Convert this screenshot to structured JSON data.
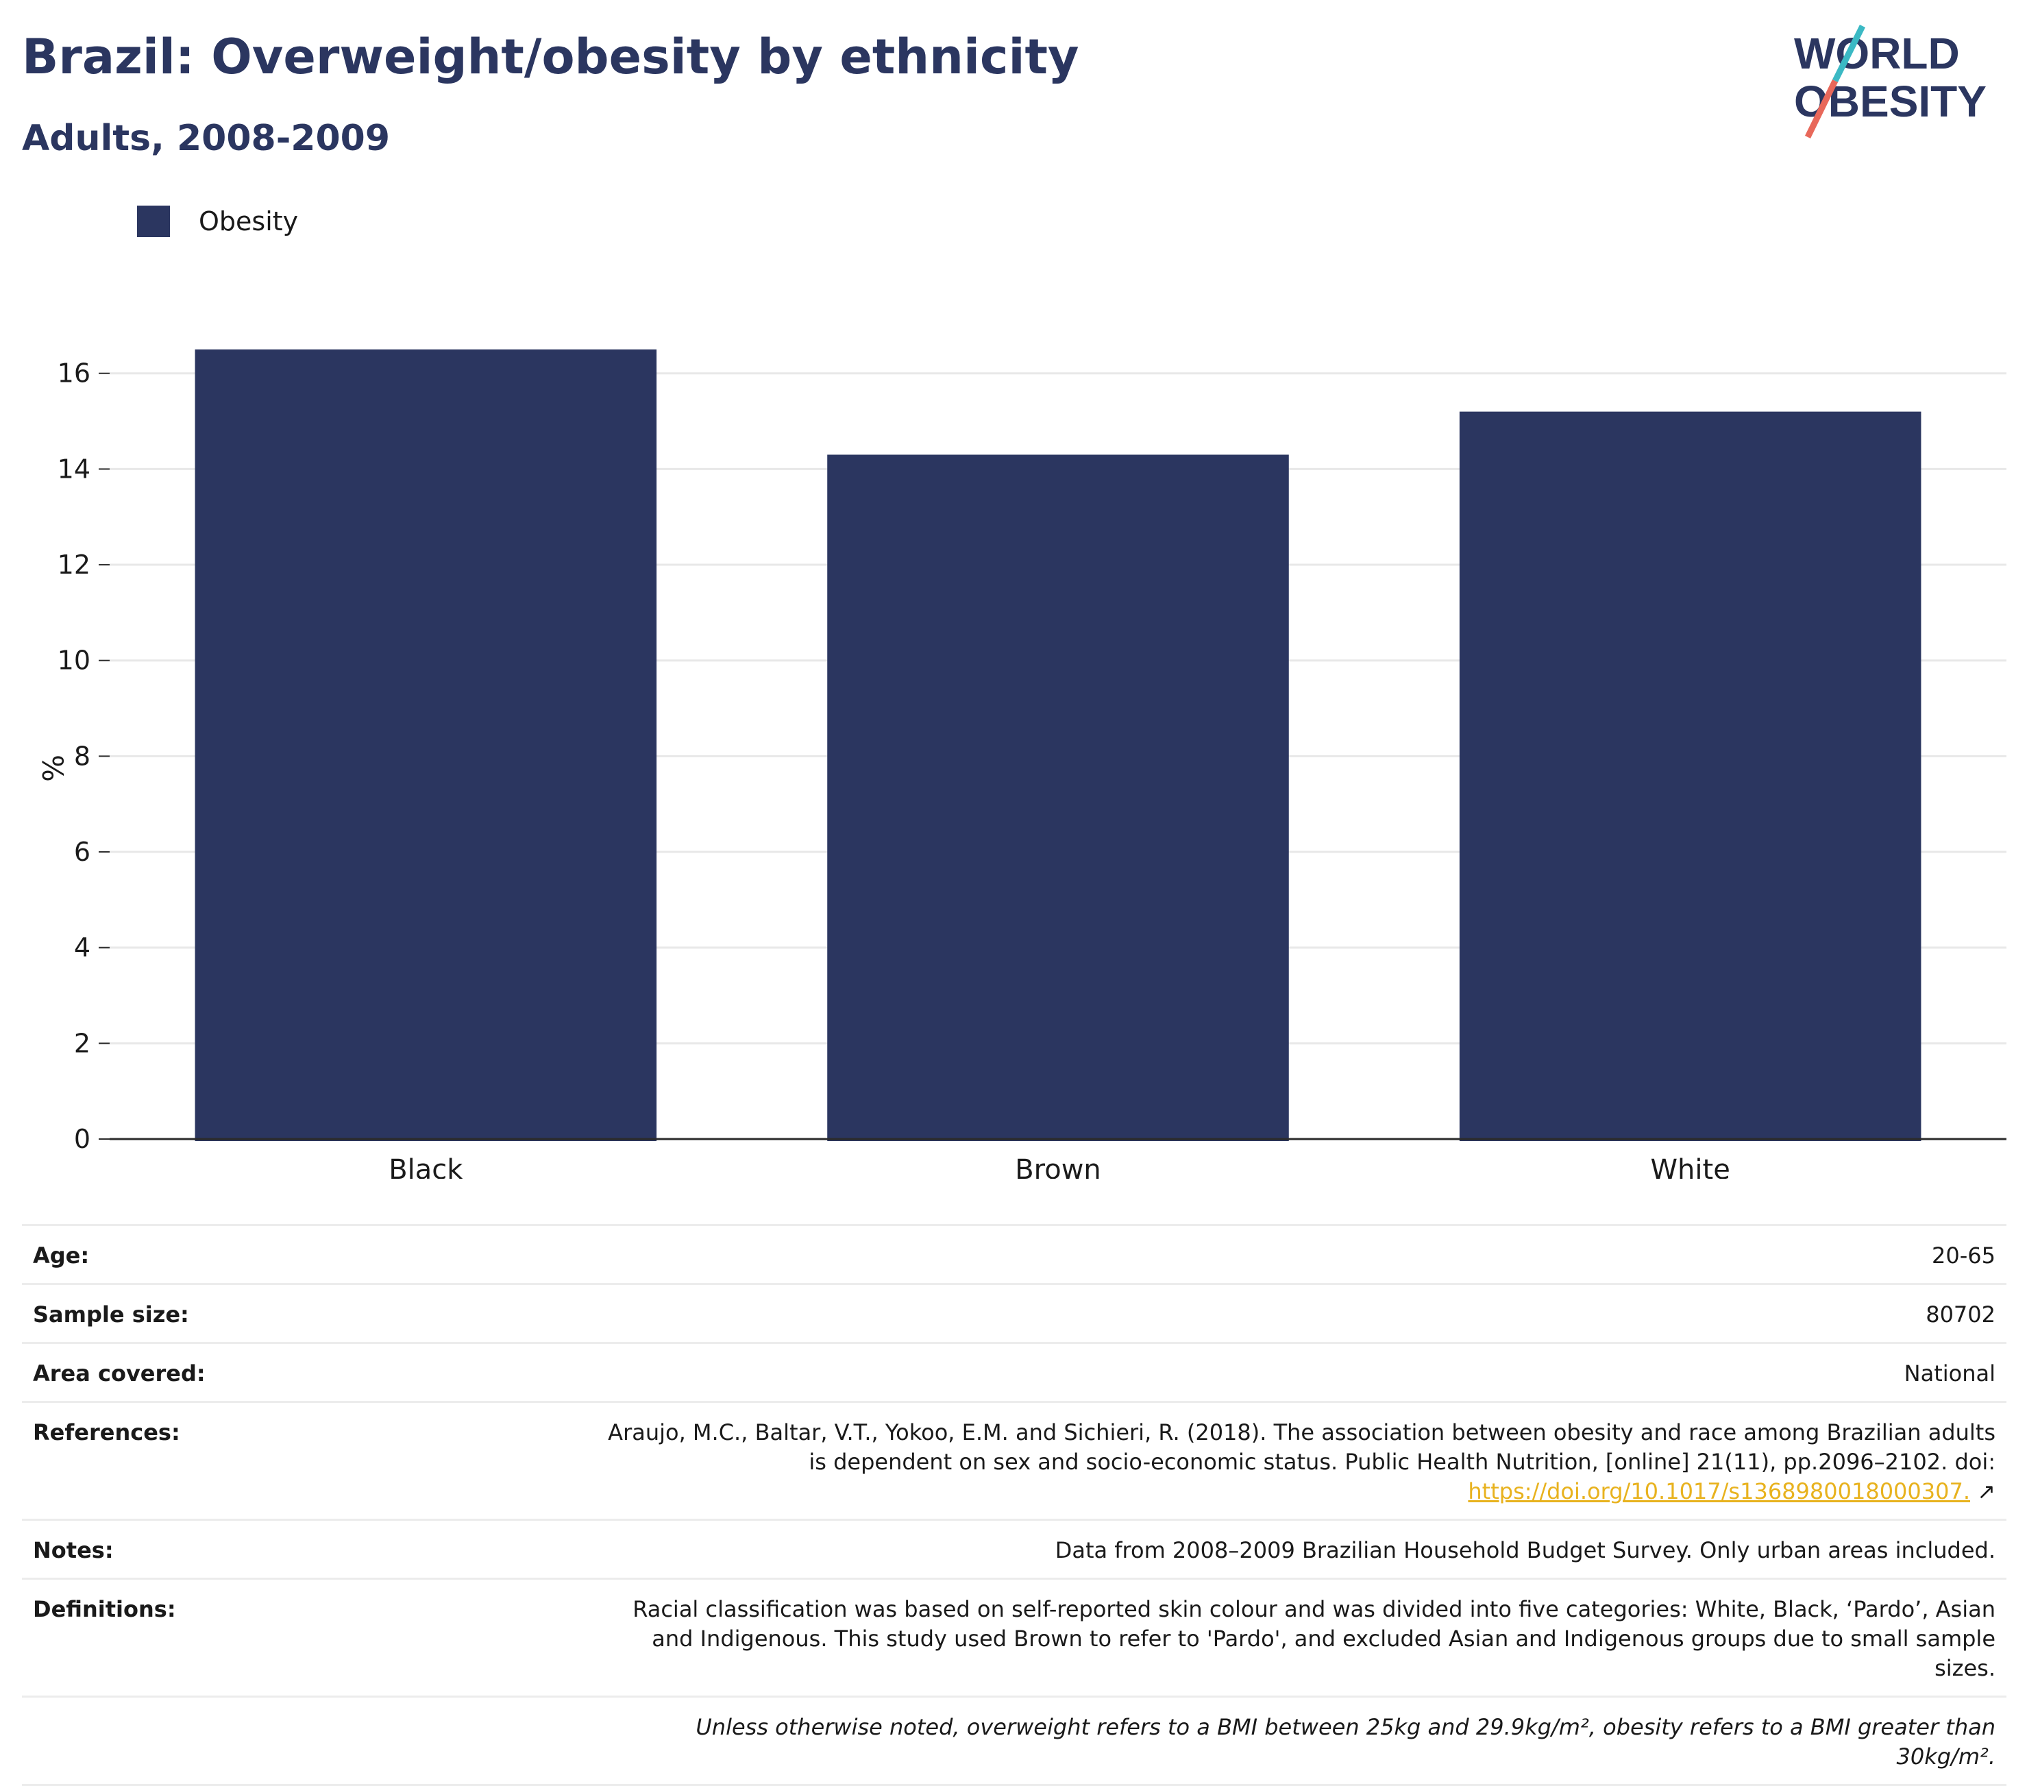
{
  "header": {
    "title": "Brazil: Overweight/obesity by ethnicity",
    "subtitle": "Adults, 2008-2009"
  },
  "logo": {
    "line1": "WORLD",
    "line2": "OBESITY",
    "colors": {
      "text": "#2b3660",
      "slash_top": "#3bb9c4",
      "slash_bottom": "#e8685a"
    }
  },
  "legend": {
    "label": "Obesity",
    "color": "#2b3660"
  },
  "chart_data": {
    "type": "bar",
    "categories": [
      "Black",
      "Brown",
      "White"
    ],
    "series": [
      {
        "name": "Obesity",
        "values": [
          16.5,
          14.3,
          15.2
        ],
        "color": "#2b3660"
      }
    ],
    "title": "Brazil: Overweight/obesity by ethnicity",
    "subtitle": "Adults, 2008-2009",
    "xlabel": "",
    "ylabel": "%",
    "ylim": [
      0,
      17.5
    ],
    "yticks": [
      0,
      2,
      4,
      6,
      8,
      10,
      12,
      14,
      16
    ],
    "grid": true,
    "legend_position": "top-left"
  },
  "meta": {
    "age": {
      "label": "Age:",
      "value": "20-65"
    },
    "sample_size": {
      "label": "Sample size:",
      "value": "80702"
    },
    "area": {
      "label": "Area covered:",
      "value": "National"
    },
    "references": {
      "label": "References:",
      "text": "Araujo, M.C., Baltar, V.T., Yokoo, E.M. and Sichieri, R. (2018). The association between obesity and race among Brazilian adults is dependent on sex and socio-economic status. Public Health Nutrition, [online] 21(11), pp.2096–2102. doi:",
      "link": "https://doi.org/10.1017/s1368980018000307.",
      "link_icon": "external-link-icon"
    },
    "notes": {
      "label": "Notes:",
      "value": "Data from 2008–2009 Brazilian Household Budget Survey. Only urban areas included."
    },
    "definitions": {
      "label": "Definitions:",
      "value": "Racial classification was based on self-reported skin colour and was divided into five categories: White, Black, ‘Pardo’, Asian and Indigenous. This study used Brown to refer to 'Pardo', and excluded Asian and Indigenous groups due to small sample sizes."
    },
    "footnote": "Unless otherwise noted, overweight refers to a BMI between 25kg and 29.9kg/m², obesity refers to a BMI greater than 30kg/m²."
  }
}
